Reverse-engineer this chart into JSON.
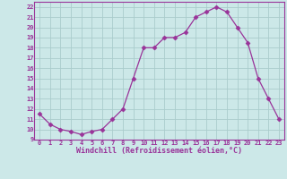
{
  "x": [
    0,
    1,
    2,
    3,
    4,
    5,
    6,
    7,
    8,
    9,
    10,
    11,
    12,
    13,
    14,
    15,
    16,
    17,
    18,
    19,
    20,
    21,
    22,
    23
  ],
  "y": [
    11.5,
    10.5,
    10.0,
    9.8,
    9.5,
    9.8,
    10.0,
    11.0,
    12.0,
    15.0,
    18.0,
    18.0,
    19.0,
    19.0,
    19.5,
    21.0,
    21.5,
    22.0,
    21.5,
    20.0,
    18.5,
    15.0,
    13.0,
    11.0
  ],
  "line_color": "#993399",
  "marker": "D",
  "marker_size": 2.5,
  "bg_color": "#cce8e8",
  "grid_color": "#aacccc",
  "xlabel": "Windchill (Refroidissement éolien,°C)",
  "xlabel_color": "#993399",
  "tick_color": "#993399",
  "ylim": [
    9,
    22.5
  ],
  "xlim": [
    -0.5,
    23.5
  ],
  "yticks": [
    9,
    10,
    11,
    12,
    13,
    14,
    15,
    16,
    17,
    18,
    19,
    20,
    21,
    22
  ],
  "xticks": [
    0,
    1,
    2,
    3,
    4,
    5,
    6,
    7,
    8,
    9,
    10,
    11,
    12,
    13,
    14,
    15,
    16,
    17,
    18,
    19,
    20,
    21,
    22,
    23
  ],
  "spine_color": "#993399"
}
